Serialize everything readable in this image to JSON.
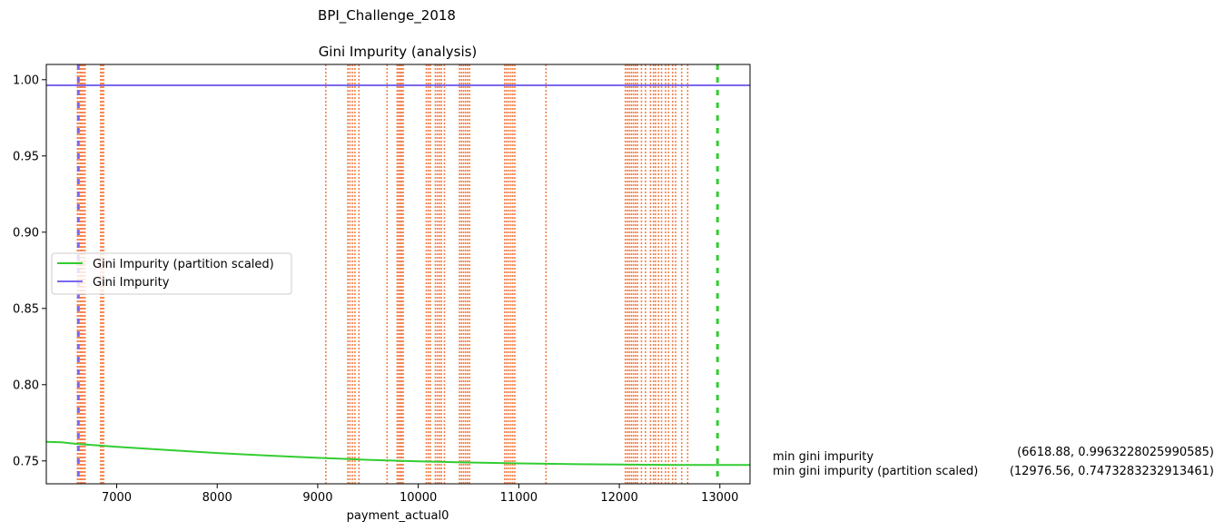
{
  "chart_data": {
    "type": "line",
    "suptitle": "BPI_Challenge_2018",
    "title": "Gini Impurity (analysis)",
    "xlabel": "payment_actual0",
    "ylabel": "",
    "xlim": [
      6300,
      13300
    ],
    "ylim": [
      0.735,
      1.01
    ],
    "xticks": [
      7000,
      8000,
      9000,
      10000,
      11000,
      12000,
      13000
    ],
    "xtick_labels": [
      "7000",
      "8000",
      "9000",
      "10000",
      "11000",
      "12000",
      "13000"
    ],
    "yticks": [
      0.75,
      0.8,
      0.85,
      0.9,
      0.95,
      1.0
    ],
    "ytick_labels": [
      "0.75",
      "0.80",
      "0.85",
      "0.90",
      "0.95",
      "1.00"
    ],
    "grid": false,
    "legend_position": "center-left",
    "series": [
      {
        "name": "Gini Impurity (partition scaled)",
        "color": "#32cd32",
        "x": [
          6300,
          6450,
          6600,
          6700,
          7000,
          7500,
          8000,
          8500,
          9000,
          9500,
          10000,
          10500,
          11000,
          11500,
          12000,
          12500,
          13000,
          13300
        ],
        "y": [
          0.7625,
          0.7622,
          0.7612,
          0.7608,
          0.7592,
          0.7572,
          0.7552,
          0.7535,
          0.752,
          0.7507,
          0.7497,
          0.749,
          0.7484,
          0.7479,
          0.7476,
          0.7474,
          0.7473,
          0.7473
        ]
      },
      {
        "name": "Gini Impurity",
        "color": "#7b68ee",
        "x": [
          6300,
          13300
        ],
        "y": [
          0.9963,
          0.9963
        ]
      }
    ],
    "split_lines": {
      "color": "#f4804a",
      "style": "dotted",
      "x": [
        6610,
        6625,
        6640,
        6655,
        6670,
        6685,
        6840,
        6855,
        6870,
        9080,
        9300,
        9320,
        9345,
        9370,
        9410,
        9690,
        9790,
        9805,
        9820,
        9835,
        9850,
        10080,
        10100,
        10120,
        10170,
        10190,
        10210,
        10230,
        10260,
        10410,
        10430,
        10450,
        10470,
        10490,
        10510,
        10860,
        10880,
        10900,
        10920,
        10940,
        10960,
        11270,
        12060,
        12080,
        12100,
        12120,
        12140,
        12160,
        12180,
        12220,
        12260,
        12310,
        12340,
        12360,
        12390,
        12420,
        12460,
        12490,
        12530,
        12560,
        12620,
        12680
      ]
    },
    "min_markers": [
      {
        "series": "Gini Impurity",
        "x": 6618.88,
        "y": 0.9963228025990585,
        "color": "#7b68ee"
      },
      {
        "series": "Gini Impurity (partition scaled)",
        "x": 12976.56,
        "y": 0.7473283232913461,
        "color": "#32cd32"
      }
    ]
  },
  "annotations": {
    "min_gini_label": "min gini impurity",
    "min_gini_value": "(6618.88, 0.9963228025990585)",
    "min_gini_scaled_label": "min gini impurity (partition scaled)",
    "min_gini_scaled_value": "(12976.56, 0.7473283232913461)"
  }
}
